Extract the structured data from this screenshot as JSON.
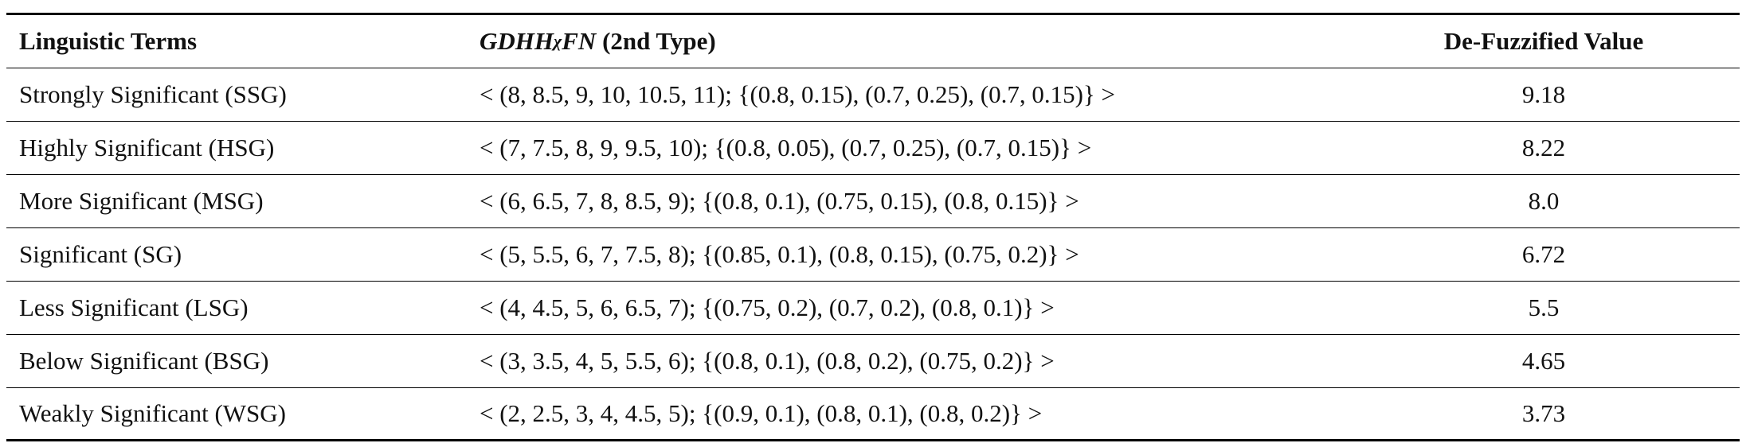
{
  "table": {
    "header": {
      "term": "Linguistic Terms",
      "number": {
        "main": "GDHH",
        "sub": "χ",
        "rest": "FN",
        "suffix": " (2nd Type)"
      },
      "value": "De-Fuzzified Value"
    },
    "rows": [
      [
        "Strongly Significant (SSG)",
        "< (8, 8.5, 9, 10, 10.5, 11); {(0.8, 0.15), (0.7, 0.25), (0.7, 0.15)} >",
        "9.18"
      ],
      [
        "Highly Significant (HSG)",
        "< (7, 7.5, 8, 9, 9.5, 10); {(0.8, 0.05), (0.7, 0.25), (0.7, 0.15)} >",
        "8.22"
      ],
      [
        "More Significant (MSG)",
        "< (6, 6.5, 7, 8, 8.5, 9); {(0.8, 0.1), (0.75, 0.15), (0.8, 0.15)} >",
        "8.0"
      ],
      [
        "Significant (SG)",
        "< (5, 5.5, 6, 7, 7.5, 8); {(0.85, 0.1), (0.8, 0.15), (0.75, 0.2)} >",
        "6.72"
      ],
      [
        "Less Significant (LSG)",
        "< (4, 4.5, 5, 6, 6.5, 7); {(0.75, 0.2), (0.7, 0.2), (0.8, 0.1)} >",
        "5.5"
      ],
      [
        "Below Significant (BSG)",
        "< (3, 3.5, 4, 5, 5.5, 6); {(0.8, 0.1), (0.8, 0.2), (0.75, 0.2)} >",
        "4.65"
      ],
      [
        "Weakly Significant (WSG)",
        "< (2, 2.5, 3, 4, 4.5, 5); {(0.9, 0.1), (0.8, 0.1), (0.8, 0.2)} >",
        "3.73"
      ]
    ]
  }
}
